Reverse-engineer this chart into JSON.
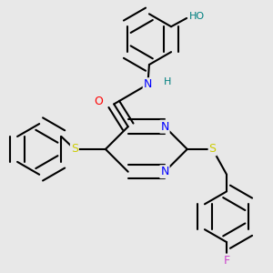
{
  "bg_color": "#e8e8e8",
  "atom_colors": {
    "N": "#0000ff",
    "O": "#ff0000",
    "S": "#cccc00",
    "F": "#cc44cc",
    "H": "#008080",
    "C": "#000000"
  },
  "bond_lw": 1.5,
  "font_size": 8,
  "xlim": [
    0.02,
    0.98
  ],
  "ylim": [
    0.02,
    0.98
  ]
}
